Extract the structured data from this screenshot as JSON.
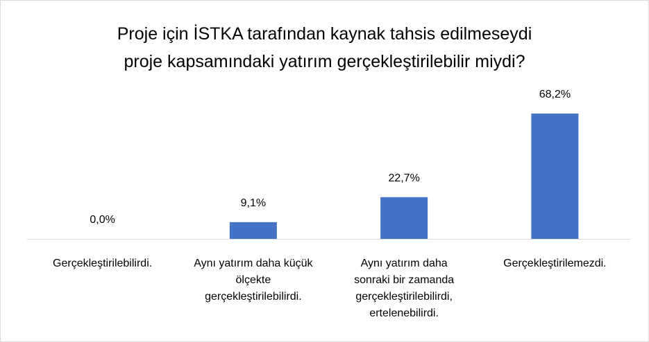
{
  "chart_data": {
    "type": "bar",
    "title": [
      "Proje için İSTKA tarafından kaynak tahsis edilmeseydi",
      "proje kapsamındaki yatırım gerçekleştirilebilir miydi?"
    ],
    "categories": [
      "Gerçekleştirilebilirdi.",
      "Aynı yatırım daha küçük ölçekte gerçekleştirilebilirdi.",
      "Aynı yatırım daha sonraki bir zamanda gerçekleştirilebilirdi, ertelenebilirdi.",
      "Gerçekleştirilemezdi."
    ],
    "values": [
      0,
      9.1,
      22.7,
      68.2
    ],
    "value_labels": [
      "0,0%",
      "9,1%",
      "22,7%",
      "68,2%"
    ],
    "color": "#4472c4"
  }
}
